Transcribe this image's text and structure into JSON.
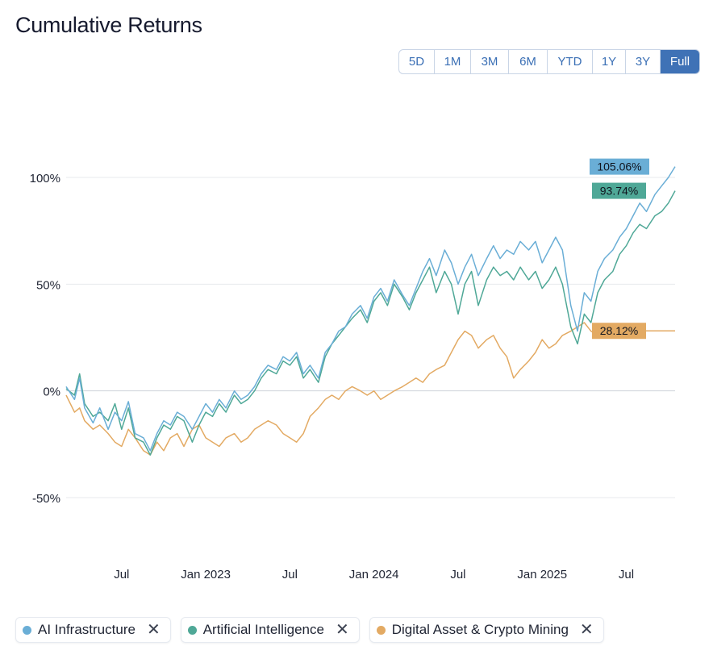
{
  "title": "Cumulative Returns",
  "range_buttons": [
    {
      "label": "5D",
      "active": false
    },
    {
      "label": "1M",
      "active": false
    },
    {
      "label": "3M",
      "active": false
    },
    {
      "label": "6M",
      "active": false
    },
    {
      "label": "YTD",
      "active": false
    },
    {
      "label": "1Y",
      "active": false
    },
    {
      "label": "3Y",
      "active": false
    },
    {
      "label": "Full",
      "active": true
    }
  ],
  "legend": [
    {
      "label": "AI Infrastructure",
      "color": "#6aaed6",
      "close_icon": "close-icon"
    },
    {
      "label": "Artificial Intelligence",
      "color": "#4fa897",
      "close_icon": "close-icon"
    },
    {
      "label": "Digital Asset & Crypto Mining",
      "color": "#e3aa63",
      "close_icon": "close-icon"
    }
  ],
  "chart_data": {
    "type": "line",
    "title": "Cumulative Returns",
    "xlabel": "",
    "ylabel": "",
    "x_range": [
      2022.17,
      2025.79
    ],
    "ylim": [
      -80,
      110
    ],
    "y_ticks": [
      {
        "value": 100,
        "label": "100%"
      },
      {
        "value": 50,
        "label": "50%"
      },
      {
        "value": 0,
        "label": "0%"
      },
      {
        "value": -50,
        "label": "-50%"
      }
    ],
    "x_ticks": [
      {
        "value": 2022.5,
        "label": "Jul"
      },
      {
        "value": 2023.0,
        "label": "Jan 2023"
      },
      {
        "value": 2023.5,
        "label": "Jul"
      },
      {
        "value": 2024.0,
        "label": "Jan 2024"
      },
      {
        "value": 2024.5,
        "label": "Jul"
      },
      {
        "value": 2025.0,
        "label": "Jan 2025"
      },
      {
        "value": 2025.5,
        "label": "Jul"
      }
    ],
    "grid": true,
    "series": [
      {
        "name": "AI Infrastructure",
        "color": "#6aaed6",
        "end_label": "105.06%",
        "x": [
          2022.17,
          2022.22,
          2022.25,
          2022.28,
          2022.33,
          2022.37,
          2022.42,
          2022.46,
          2022.5,
          2022.54,
          2022.58,
          2022.63,
          2022.67,
          2022.71,
          2022.75,
          2022.79,
          2022.83,
          2022.87,
          2022.92,
          2022.96,
          2023.0,
          2023.04,
          2023.08,
          2023.12,
          2023.17,
          2023.21,
          2023.25,
          2023.29,
          2023.33,
          2023.37,
          2023.42,
          2023.46,
          2023.5,
          2023.54,
          2023.58,
          2023.62,
          2023.67,
          2023.71,
          2023.75,
          2023.79,
          2023.83,
          2023.87,
          2023.92,
          2023.96,
          2024.0,
          2024.04,
          2024.08,
          2024.12,
          2024.17,
          2024.21,
          2024.25,
          2024.29,
          2024.33,
          2024.37,
          2024.42,
          2024.46,
          2024.5,
          2024.54,
          2024.58,
          2024.62,
          2024.67,
          2024.71,
          2024.75,
          2024.79,
          2024.83,
          2024.87,
          2024.92,
          2024.96,
          2025.0,
          2025.04,
          2025.08,
          2025.12,
          2025.17,
          2025.21,
          2025.25,
          2025.29,
          2025.33,
          2025.37,
          2025.42,
          2025.46,
          2025.5,
          2025.54,
          2025.58,
          2025.62,
          2025.67,
          2025.71,
          2025.75,
          2025.79
        ],
        "y": [
          2,
          -4,
          6,
          -8,
          -15,
          -8,
          -18,
          -10,
          -14,
          -5,
          -20,
          -22,
          -28,
          -20,
          -14,
          -16,
          -10,
          -12,
          -18,
          -12,
          -6,
          -10,
          -4,
          -8,
          0,
          -4,
          -2,
          2,
          8,
          12,
          10,
          16,
          14,
          18,
          8,
          12,
          6,
          18,
          22,
          28,
          30,
          36,
          40,
          34,
          44,
          48,
          42,
          52,
          45,
          40,
          48,
          56,
          62,
          54,
          66,
          60,
          50,
          58,
          64,
          54,
          62,
          68,
          62,
          66,
          64,
          70,
          66,
          70,
          60,
          66,
          72,
          66,
          40,
          28,
          46,
          42,
          56,
          62,
          66,
          72,
          76,
          82,
          88,
          84,
          92,
          96,
          100,
          105.06
        ]
      },
      {
        "name": "Artificial Intelligence",
        "color": "#4fa897",
        "end_label": "93.74%",
        "x": [
          2022.17,
          2022.22,
          2022.25,
          2022.28,
          2022.33,
          2022.37,
          2022.42,
          2022.46,
          2022.5,
          2022.54,
          2022.58,
          2022.63,
          2022.67,
          2022.71,
          2022.75,
          2022.79,
          2022.83,
          2022.87,
          2022.92,
          2022.96,
          2023.0,
          2023.04,
          2023.08,
          2023.12,
          2023.17,
          2023.21,
          2023.25,
          2023.29,
          2023.33,
          2023.37,
          2023.42,
          2023.46,
          2023.5,
          2023.54,
          2023.58,
          2023.62,
          2023.67,
          2023.71,
          2023.75,
          2023.79,
          2023.83,
          2023.87,
          2023.92,
          2023.96,
          2024.0,
          2024.04,
          2024.08,
          2024.12,
          2024.17,
          2024.21,
          2024.25,
          2024.29,
          2024.33,
          2024.37,
          2024.42,
          2024.46,
          2024.5,
          2024.54,
          2024.58,
          2024.62,
          2024.67,
          2024.71,
          2024.75,
          2024.79,
          2024.83,
          2024.87,
          2024.92,
          2024.96,
          2025.0,
          2025.04,
          2025.08,
          2025.12,
          2025.17,
          2025.21,
          2025.25,
          2025.29,
          2025.33,
          2025.37,
          2025.42,
          2025.46,
          2025.5,
          2025.54,
          2025.58,
          2025.62,
          2025.67,
          2025.71,
          2025.75,
          2025.79
        ],
        "y": [
          1,
          -2,
          8,
          -6,
          -12,
          -10,
          -14,
          -6,
          -18,
          -8,
          -22,
          -24,
          -30,
          -22,
          -16,
          -18,
          -12,
          -14,
          -24,
          -16,
          -10,
          -12,
          -6,
          -10,
          -2,
          -6,
          -4,
          0,
          6,
          10,
          8,
          14,
          12,
          16,
          6,
          10,
          4,
          16,
          22,
          26,
          30,
          34,
          38,
          32,
          42,
          46,
          40,
          50,
          44,
          38,
          46,
          52,
          58,
          46,
          56,
          50,
          36,
          50,
          56,
          40,
          52,
          58,
          54,
          56,
          52,
          58,
          52,
          56,
          48,
          52,
          58,
          50,
          30,
          22,
          36,
          32,
          46,
          52,
          56,
          64,
          68,
          74,
          78,
          76,
          82,
          84,
          88,
          93.74
        ]
      },
      {
        "name": "Digital Asset & Crypto Mining",
        "color": "#e3aa63",
        "end_label": "28.12%",
        "x": [
          2022.17,
          2022.22,
          2022.25,
          2022.28,
          2022.33,
          2022.37,
          2022.42,
          2022.46,
          2022.5,
          2022.54,
          2022.58,
          2022.63,
          2022.67,
          2022.71,
          2022.75,
          2022.79,
          2022.83,
          2022.87,
          2022.92,
          2022.96,
          2023.0,
          2023.04,
          2023.08,
          2023.12,
          2023.17,
          2023.21,
          2023.25,
          2023.29,
          2023.33,
          2023.37,
          2023.42,
          2023.46,
          2023.5,
          2023.54,
          2023.58,
          2023.62,
          2023.67,
          2023.71,
          2023.75,
          2023.79,
          2023.83,
          2023.87,
          2023.92,
          2023.96,
          2024.0,
          2024.04,
          2024.08,
          2024.12,
          2024.17,
          2024.21,
          2024.25,
          2024.29,
          2024.33,
          2024.37,
          2024.42,
          2024.46,
          2024.5,
          2024.54,
          2024.58,
          2024.62,
          2024.67,
          2024.71,
          2024.75,
          2024.79,
          2024.83,
          2024.87,
          2024.92,
          2024.96,
          2025.0,
          2025.04,
          2025.08,
          2025.12,
          2025.17,
          2025.21,
          2025.25,
          2025.29,
          2025.33,
          2025.37,
          2025.42,
          2025.46,
          2025.5,
          2025.54,
          2025.58,
          2025.62,
          2025.67,
          2025.71,
          2025.75,
          2025.79
        ],
        "y": [
          -2,
          -10,
          -8,
          -14,
          -18,
          -16,
          -20,
          -24,
          -26,
          -18,
          -22,
          -28,
          -30,
          -24,
          -28,
          -22,
          -20,
          -26,
          -18,
          -16,
          -22,
          -24,
          -26,
          -22,
          -20,
          -24,
          -22,
          -18,
          -16,
          -14,
          -16,
          -20,
          -22,
          -24,
          -20,
          -12,
          -8,
          -4,
          -2,
          -4,
          0,
          2,
          0,
          -2,
          0,
          -4,
          -2,
          0,
          2,
          4,
          6,
          4,
          8,
          10,
          12,
          18,
          24,
          28,
          26,
          20,
          24,
          26,
          20,
          16,
          6,
          10,
          14,
          18,
          24,
          20,
          22,
          26,
          28,
          30,
          32,
          28,
          26,
          28,
          30,
          29,
          27,
          28,
          28.12,
          28.12,
          28.12,
          28.12,
          28.12,
          28.12
        ]
      }
    ]
  }
}
